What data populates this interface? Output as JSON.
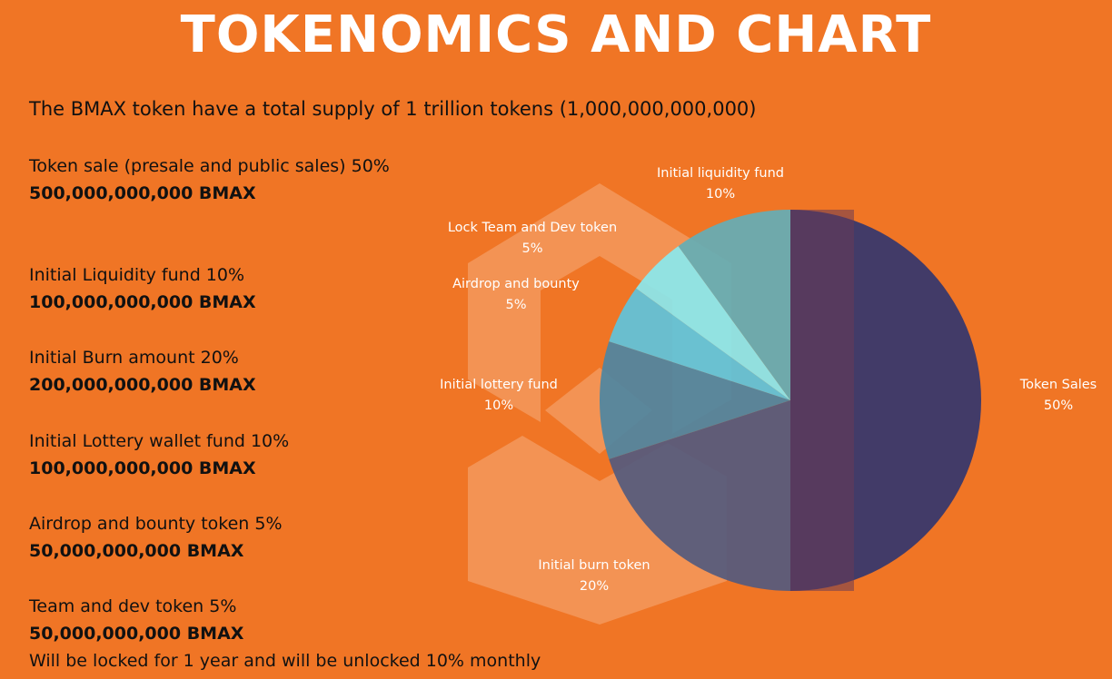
{
  "title": "TOKENOMICS AND CHART",
  "intro": "The BMAX token have a total supply of 1 trillion tokens (1,000,000,000,000)",
  "allocations": [
    {
      "label": "Token sale (presale and public sales) 50%",
      "amount": "500,000,000,000 BMAX"
    },
    {
      "label": "Initial Liquidity fund 10%",
      "amount": "100,000,000,000 BMAX"
    },
    {
      "label": "Initial Burn amount 20%",
      "amount": "200,000,000,000 BMAX"
    },
    {
      "label": "Initial Lottery wallet fund 10%",
      "amount": "100,000,000,000 BMAX"
    },
    {
      "label": "Airdrop and bounty token 5%",
      "amount": "50,000,000,000 BMAX"
    },
    {
      "label": "Team and dev token 5%",
      "amount": "50,000,000,000 BMAX",
      "note": "Will be locked for 1 year and will be unlocked 10% monthly"
    }
  ],
  "chart_data": {
    "type": "pie",
    "slices": [
      {
        "name": "Token Sales",
        "value": 50,
        "label": "50%",
        "color": "#33366e"
      },
      {
        "name": "Initial burn token",
        "value": 20,
        "label": "20%",
        "color": "#545a7e"
      },
      {
        "name": "Initial lottery fund",
        "value": 10,
        "label": "10%",
        "color": "#4e86a2"
      },
      {
        "name": "Airdrop and bounty",
        "value": 5,
        "label": "5%",
        "color": "#5ec4dc"
      },
      {
        "name": "Lock Team and Dev token",
        "value": 5,
        "label": "5%",
        "color": "#8ae8ee"
      },
      {
        "name": "Initial liquidity fund",
        "value": 10,
        "label": "10%",
        "color": "#64aeb6"
      }
    ]
  }
}
